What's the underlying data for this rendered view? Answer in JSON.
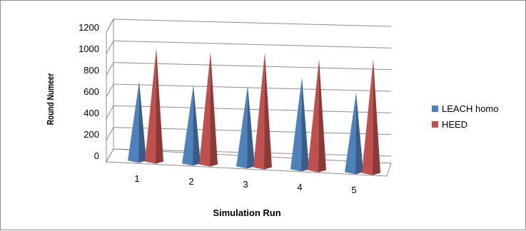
{
  "chart_data": {
    "type": "bar",
    "style": "3d-cone",
    "categories": [
      "1",
      "2",
      "3",
      "4",
      "5"
    ],
    "series": [
      {
        "name": "LEACH homo",
        "values": [
          700,
          690,
          710,
          810,
          700
        ],
        "color": "#4F81BD"
      },
      {
        "name": "HEED",
        "values": [
          1000,
          990,
          1010,
          980,
          1000
        ],
        "color": "#C0504D"
      }
    ],
    "title": "",
    "xlabel": "Simulation Run",
    "ylabel": "Round Numeer",
    "ylim": [
      0,
      1200
    ],
    "yticks": [
      "0",
      "200",
      "400",
      "600",
      "800",
      "1000",
      "1200"
    ],
    "grid": true,
    "legend_position": "right"
  }
}
